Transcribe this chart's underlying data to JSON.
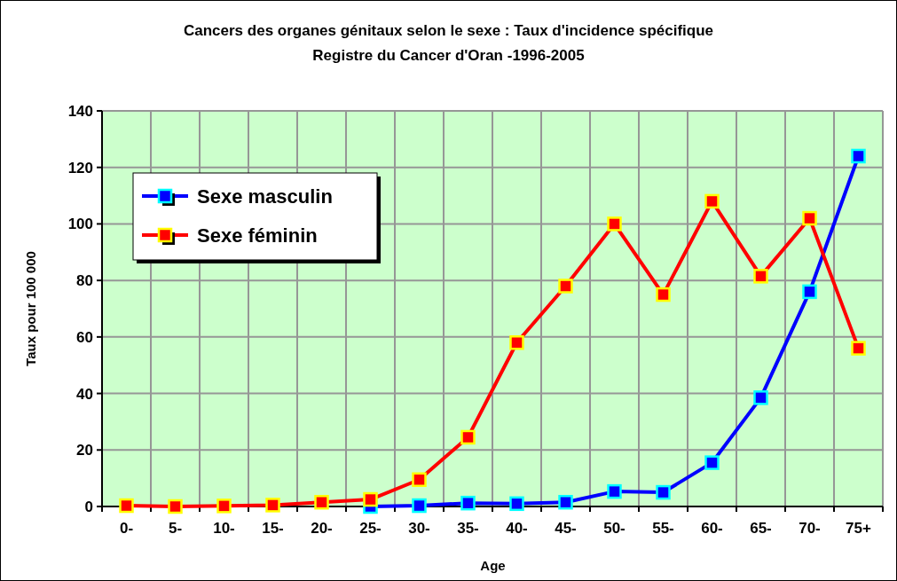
{
  "chart_data": {
    "type": "line",
    "title": "Cancers des organes génitaux selon le sexe : Taux d'incidence spécifique",
    "subtitle": "Registre du Cancer d'Oran  -1996-2005",
    "xlabel": "Age",
    "ylabel": "Taux pour 100 000",
    "categories": [
      "0-",
      "5-",
      "10-",
      "15-",
      "20-",
      "25-",
      "30-",
      "35-",
      "40-",
      "45-",
      "50-",
      "55-",
      "60-",
      "65-",
      "70-",
      "75+"
    ],
    "series": [
      {
        "name": "Sexe masculin",
        "color": "#0000ff",
        "values": [
          null,
          null,
          null,
          null,
          null,
          0,
          0.3,
          1.2,
          1,
          1.5,
          5.3,
          5,
          15.5,
          38.5,
          76,
          124
        ]
      },
      {
        "name": "Sexe féminin",
        "color": "#ff0000",
        "values": [
          0.3,
          0,
          0.2,
          0.5,
          1.5,
          2.5,
          9.5,
          24.5,
          58,
          78,
          100,
          75,
          108,
          81.5,
          102,
          56
        ]
      }
    ],
    "ylim": [
      0,
      140
    ],
    "yticks": [
      0,
      20,
      40,
      60,
      80,
      100,
      120,
      140
    ],
    "grid": true,
    "legend": "top left",
    "marker": "square",
    "line_style": "solid"
  }
}
